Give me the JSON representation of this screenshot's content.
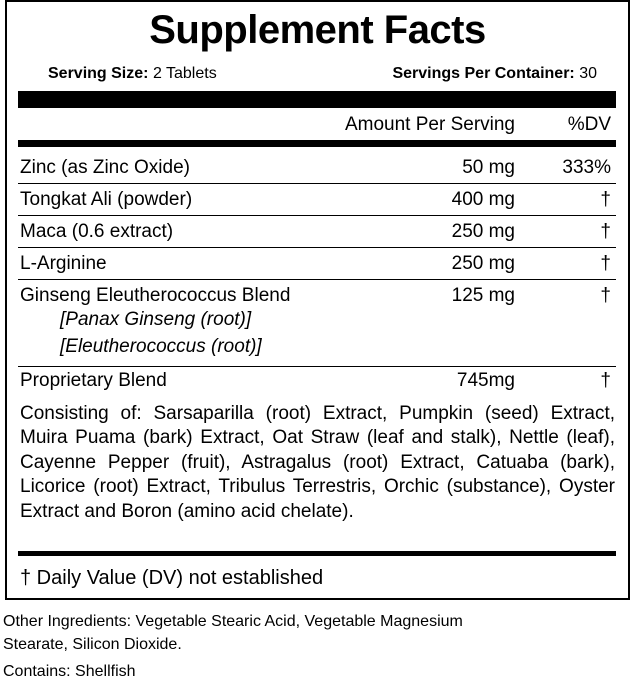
{
  "header": {
    "title": "Supplement Facts",
    "serving_size": {
      "label": "Serving Size:",
      "value": "2 Tablets"
    },
    "servings_per_container": {
      "label": "Servings Per Container:",
      "value": "30"
    }
  },
  "table": {
    "columns": [
      "Amount Per Serving",
      "%DV"
    ],
    "rows": [
      {
        "name": "Zinc (as Zinc Oxide)",
        "amount": "50 mg",
        "dv": "333%"
      },
      {
        "name": "Tongkat Ali (powder)",
        "amount": "400 mg",
        "dv": "†"
      },
      {
        "name": "Maca (0.6 extract)",
        "amount": "250 mg",
        "dv": "†"
      },
      {
        "name": "L-Arginine",
        "amount": "250 mg",
        "dv": "†"
      },
      {
        "name": "Ginseng Eleutherococcus Blend",
        "amount": "125 mg",
        "dv": "†",
        "sub": [
          "[Panax Ginseng (root)]",
          "[Eleutherococcus (root)]"
        ]
      },
      {
        "name": "Proprietary Blend",
        "amount": "745mg",
        "dv": "†"
      }
    ],
    "blend_description": "Consisting of: Sarsaparilla (root) Extract, Pumpkin (seed) Extract, Muira Puama (bark) Extract, Oat Straw (leaf and stalk), Nettle (leaf), Cayenne Pepper (fruit), Astragalus (root) Extract, Catuaba (bark), Licorice (root) Extract, Tribulus Terrestris, Orchic (substance), Oyster Extract and Boron (amino acid chelate).",
    "footnote": "† Daily Value (DV) not established"
  },
  "other_ingredients": "Other Ingredients: Vegetable Stearic Acid, Vegetable Magnesium Stearate, Silicon Dioxide.",
  "contains": "Contains: Shellfish"
}
